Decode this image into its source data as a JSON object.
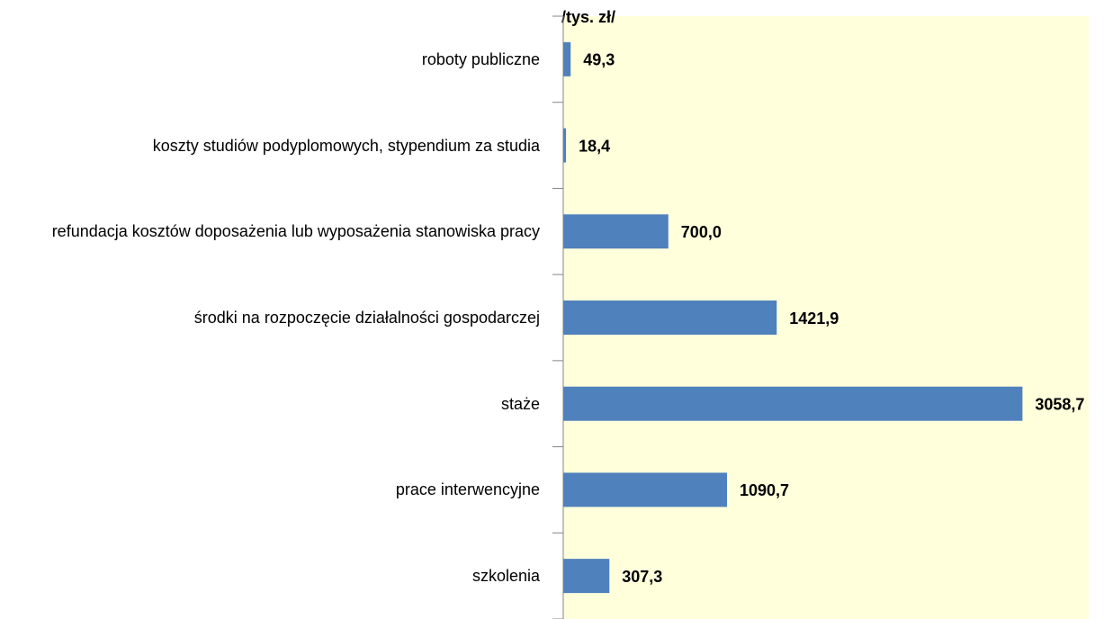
{
  "chart_data": {
    "type": "bar",
    "orientation": "horizontal",
    "x_label": "/tys. zł/",
    "categories": [
      "roboty publiczne",
      "koszty studiów podyplomowych, stypendium za studia",
      "refundacja kosztów doposażenia lub wyposażenia stanowiska pracy",
      "środki na rozpoczęcie działalności gospodarczej",
      "staże",
      "prace interwencyjne",
      "szkolenia"
    ],
    "values": [
      49.3,
      18.4,
      700.0,
      1421.9,
      3058.7,
      1090.7,
      307.3
    ],
    "value_labels": [
      "49,3",
      "18,4",
      "700,0",
      "1421,9",
      "3058,7",
      "1090,7",
      "307,3"
    ],
    "color": "#4f81bd",
    "plot_background": "#ffffdc",
    "xlim": [
      0,
      3500
    ]
  }
}
